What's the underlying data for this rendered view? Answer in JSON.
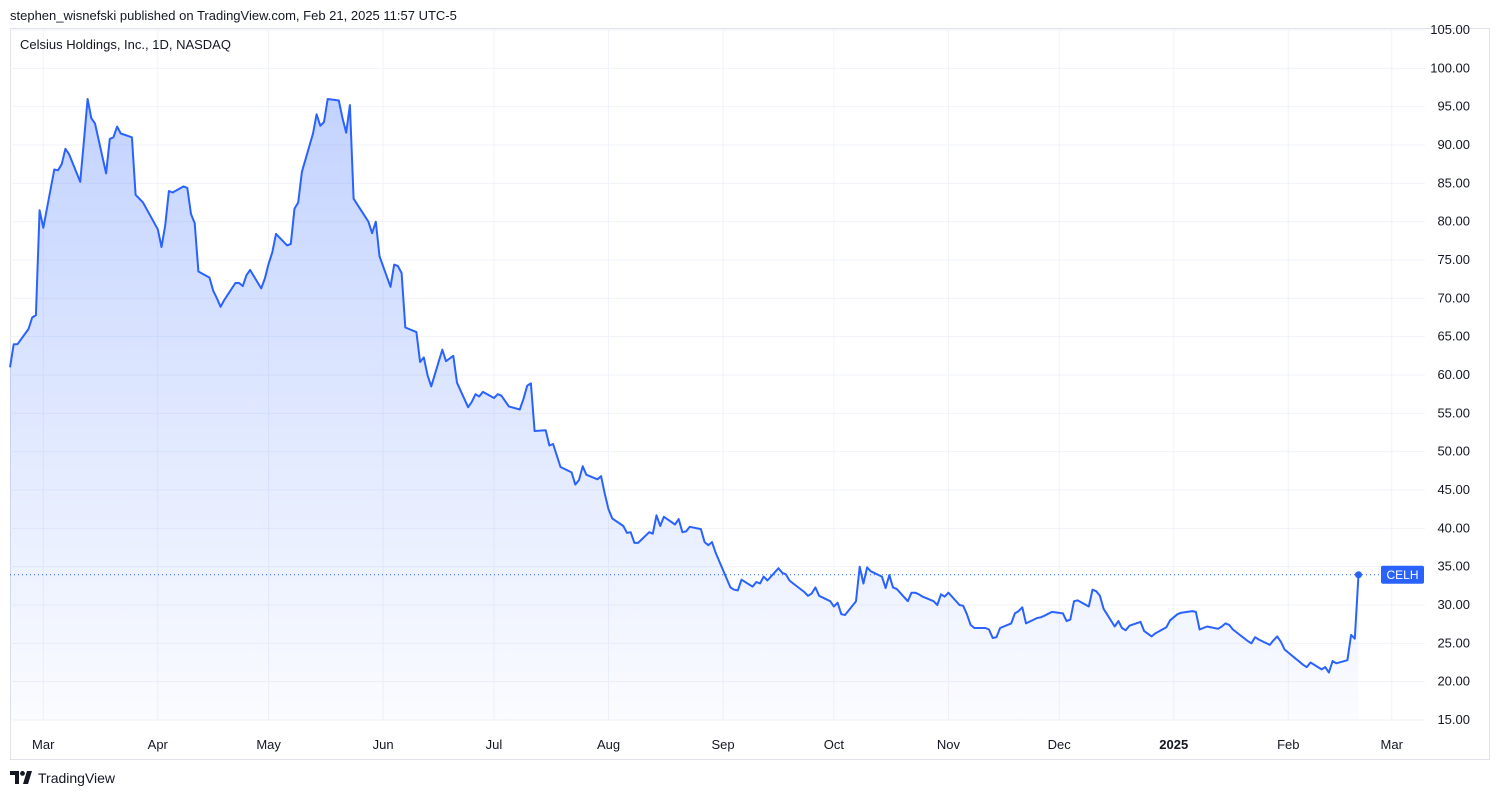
{
  "header": {
    "publisher_line": "stephen_wisnefski published on TradingView.com, Feb 21, 2025 11:57 UTC-5"
  },
  "legend": {
    "title": "Celsius Holdings, Inc., 1D, NASDAQ"
  },
  "footer": {
    "brand": "TradingView",
    "logo_icon": "tradingview-logo-icon"
  },
  "colors": {
    "line": "#2962ff",
    "fill_top": "#2962ff",
    "grid": "#f0f3fa",
    "axis_text": "#131722",
    "price_tag_bg": "#2962ff",
    "price_tag_text": "#ffffff"
  },
  "chart_data": {
    "type": "area",
    "symbol": "CELH",
    "current_price": 33.95,
    "y_axis": {
      "min": 15,
      "max": 105,
      "ticks": [
        "15.00",
        "20.00",
        "25.00",
        "30.00",
        "35.00",
        "40.00",
        "45.00",
        "50.00",
        "55.00",
        "60.00",
        "65.00",
        "70.00",
        "75.00",
        "80.00",
        "85.00",
        "90.00",
        "95.00",
        "100.00",
        "105.00"
      ],
      "position": "right"
    },
    "x_axis": {
      "start": "2024-02-21",
      "end": "2025-03-10",
      "ticks": [
        {
          "label": "Mar",
          "date": "2024-03-01",
          "bold": false
        },
        {
          "label": "Apr",
          "date": "2024-04-01",
          "bold": false
        },
        {
          "label": "May",
          "date": "2024-05-01",
          "bold": false
        },
        {
          "label": "Jun",
          "date": "2024-06-01",
          "bold": false
        },
        {
          "label": "Jul",
          "date": "2024-07-01",
          "bold": false
        },
        {
          "label": "Aug",
          "date": "2024-08-01",
          "bold": false
        },
        {
          "label": "Sep",
          "date": "2024-09-01",
          "bold": false
        },
        {
          "label": "Oct",
          "date": "2024-10-01",
          "bold": false
        },
        {
          "label": "Nov",
          "date": "2024-11-01",
          "bold": false
        },
        {
          "label": "Dec",
          "date": "2024-12-01",
          "bold": false
        },
        {
          "label": "2025",
          "date": "2025-01-01",
          "bold": true
        },
        {
          "label": "Feb",
          "date": "2025-02-01",
          "bold": false
        },
        {
          "label": "Mar",
          "date": "2025-03-01",
          "bold": false
        }
      ]
    },
    "grid": true,
    "series": [
      {
        "name": "CELH",
        "points": [
          [
            "2024-02-21",
            61.0
          ],
          [
            "2024-02-22",
            64.0
          ],
          [
            "2024-02-23",
            64.0
          ],
          [
            "2024-02-26",
            66.0
          ],
          [
            "2024-02-27",
            67.5
          ],
          [
            "2024-02-28",
            67.8
          ],
          [
            "2024-02-29",
            81.5
          ],
          [
            "2024-03-01",
            79.2
          ],
          [
            "2024-03-04",
            86.8
          ],
          [
            "2024-03-05",
            86.7
          ],
          [
            "2024-03-06",
            87.5
          ],
          [
            "2024-03-07",
            89.5
          ],
          [
            "2024-03-08",
            88.8
          ],
          [
            "2024-03-11",
            85.2
          ],
          [
            "2024-03-12",
            90.5
          ],
          [
            "2024-03-13",
            96.0
          ],
          [
            "2024-03-14",
            93.5
          ],
          [
            "2024-03-15",
            92.8
          ],
          [
            "2024-03-18",
            86.3
          ],
          [
            "2024-03-19",
            90.8
          ],
          [
            "2024-03-20",
            91.0
          ],
          [
            "2024-03-21",
            92.4
          ],
          [
            "2024-03-22",
            91.5
          ],
          [
            "2024-03-25",
            91.0
          ],
          [
            "2024-03-26",
            83.5
          ],
          [
            "2024-03-27",
            83.0
          ],
          [
            "2024-03-28",
            82.5
          ],
          [
            "2024-04-01",
            79.0
          ],
          [
            "2024-04-02",
            76.7
          ],
          [
            "2024-04-03",
            79.5
          ],
          [
            "2024-04-04",
            84.0
          ],
          [
            "2024-04-05",
            83.8
          ],
          [
            "2024-04-08",
            84.6
          ],
          [
            "2024-04-09",
            84.4
          ],
          [
            "2024-04-10",
            81.0
          ],
          [
            "2024-04-11",
            79.8
          ],
          [
            "2024-04-12",
            73.5
          ],
          [
            "2024-04-15",
            72.7
          ],
          [
            "2024-04-16",
            71.0
          ],
          [
            "2024-04-17",
            70.0
          ],
          [
            "2024-04-18",
            68.9
          ],
          [
            "2024-04-19",
            69.8
          ],
          [
            "2024-04-22",
            72.0
          ],
          [
            "2024-04-23",
            72.0
          ],
          [
            "2024-04-24",
            71.6
          ],
          [
            "2024-04-25",
            73.0
          ],
          [
            "2024-04-26",
            73.7
          ],
          [
            "2024-04-29",
            71.3
          ],
          [
            "2024-04-30",
            72.6
          ],
          [
            "2024-05-01",
            74.5
          ],
          [
            "2024-05-02",
            76.0
          ],
          [
            "2024-05-03",
            78.4
          ],
          [
            "2024-05-06",
            76.9
          ],
          [
            "2024-05-07",
            77.1
          ],
          [
            "2024-05-08",
            81.7
          ],
          [
            "2024-05-09",
            82.5
          ],
          [
            "2024-05-10",
            86.5
          ],
          [
            "2024-05-13",
            91.5
          ],
          [
            "2024-05-14",
            94.0
          ],
          [
            "2024-05-15",
            92.5
          ],
          [
            "2024-05-16",
            93.0
          ],
          [
            "2024-05-17",
            96.0
          ],
          [
            "2024-05-20",
            95.8
          ],
          [
            "2024-05-21",
            93.5
          ],
          [
            "2024-05-22",
            91.6
          ],
          [
            "2024-05-23",
            95.2
          ],
          [
            "2024-05-24",
            83.0
          ],
          [
            "2024-05-28",
            80.0
          ],
          [
            "2024-05-29",
            78.5
          ],
          [
            "2024-05-30",
            80.0
          ],
          [
            "2024-05-31",
            75.5
          ],
          [
            "2024-06-03",
            71.5
          ],
          [
            "2024-06-04",
            74.4
          ],
          [
            "2024-06-05",
            74.2
          ],
          [
            "2024-06-06",
            73.3
          ],
          [
            "2024-06-07",
            66.2
          ],
          [
            "2024-06-10",
            65.6
          ],
          [
            "2024-06-11",
            61.7
          ],
          [
            "2024-06-12",
            62.3
          ],
          [
            "2024-06-13",
            60.0
          ],
          [
            "2024-06-14",
            58.5
          ],
          [
            "2024-06-17",
            63.3
          ],
          [
            "2024-06-18",
            61.8
          ],
          [
            "2024-06-20",
            62.5
          ],
          [
            "2024-06-21",
            59.0
          ],
          [
            "2024-06-24",
            55.8
          ],
          [
            "2024-06-25",
            56.5
          ],
          [
            "2024-06-26",
            57.5
          ],
          [
            "2024-06-27",
            57.2
          ],
          [
            "2024-06-28",
            57.8
          ],
          [
            "2024-07-01",
            57.0
          ],
          [
            "2024-07-02",
            57.5
          ],
          [
            "2024-07-03",
            57.3
          ],
          [
            "2024-07-05",
            55.9
          ],
          [
            "2024-07-08",
            55.5
          ],
          [
            "2024-07-09",
            56.9
          ],
          [
            "2024-07-10",
            58.6
          ],
          [
            "2024-07-11",
            58.9
          ],
          [
            "2024-07-12",
            52.7
          ],
          [
            "2024-07-15",
            52.8
          ],
          [
            "2024-07-16",
            50.8
          ],
          [
            "2024-07-17",
            51.0
          ],
          [
            "2024-07-18",
            49.5
          ],
          [
            "2024-07-19",
            48.0
          ],
          [
            "2024-07-22",
            47.3
          ],
          [
            "2024-07-23",
            45.7
          ],
          [
            "2024-07-24",
            46.3
          ],
          [
            "2024-07-25",
            48.1
          ],
          [
            "2024-07-26",
            47.0
          ],
          [
            "2024-07-29",
            46.4
          ],
          [
            "2024-07-30",
            46.8
          ],
          [
            "2024-07-31",
            44.5
          ],
          [
            "2024-08-01",
            42.5
          ],
          [
            "2024-08-02",
            41.3
          ],
          [
            "2024-08-05",
            40.3
          ],
          [
            "2024-08-06",
            39.4
          ],
          [
            "2024-08-07",
            39.5
          ],
          [
            "2024-08-08",
            38.1
          ],
          [
            "2024-08-09",
            38.1
          ],
          [
            "2024-08-12",
            39.5
          ],
          [
            "2024-08-13",
            39.3
          ],
          [
            "2024-08-14",
            41.7
          ],
          [
            "2024-08-15",
            40.3
          ],
          [
            "2024-08-16",
            41.5
          ],
          [
            "2024-08-19",
            40.5
          ],
          [
            "2024-08-20",
            41.2
          ],
          [
            "2024-08-21",
            39.5
          ],
          [
            "2024-08-22",
            39.6
          ],
          [
            "2024-08-23",
            40.2
          ],
          [
            "2024-08-26",
            39.9
          ],
          [
            "2024-08-27",
            38.2
          ],
          [
            "2024-08-28",
            37.8
          ],
          [
            "2024-08-29",
            38.2
          ],
          [
            "2024-08-30",
            36.8
          ],
          [
            "2024-09-03",
            32.3
          ],
          [
            "2024-09-04",
            32.0
          ],
          [
            "2024-09-05",
            31.9
          ],
          [
            "2024-09-06",
            33.3
          ],
          [
            "2024-09-09",
            32.4
          ],
          [
            "2024-09-10",
            33.0
          ],
          [
            "2024-09-11",
            32.8
          ],
          [
            "2024-09-12",
            33.7
          ],
          [
            "2024-09-13",
            33.2
          ],
          [
            "2024-09-16",
            34.8
          ],
          [
            "2024-09-17",
            34.2
          ],
          [
            "2024-09-18",
            34.0
          ],
          [
            "2024-09-19",
            33.2
          ],
          [
            "2024-09-20",
            32.8
          ],
          [
            "2024-09-23",
            31.7
          ],
          [
            "2024-09-24",
            31.2
          ],
          [
            "2024-09-25",
            31.5
          ],
          [
            "2024-09-26",
            32.3
          ],
          [
            "2024-09-27",
            31.2
          ],
          [
            "2024-09-30",
            30.5
          ],
          [
            "2024-10-01",
            29.8
          ],
          [
            "2024-10-02",
            30.3
          ],
          [
            "2024-10-03",
            28.8
          ],
          [
            "2024-10-04",
            28.7
          ],
          [
            "2024-10-07",
            30.5
          ],
          [
            "2024-10-08",
            35.0
          ],
          [
            "2024-10-09",
            32.8
          ],
          [
            "2024-10-10",
            34.9
          ],
          [
            "2024-10-11",
            34.4
          ],
          [
            "2024-10-14",
            33.7
          ],
          [
            "2024-10-15",
            32.2
          ],
          [
            "2024-10-16",
            33.9
          ],
          [
            "2024-10-17",
            32.3
          ],
          [
            "2024-10-18",
            32.1
          ],
          [
            "2024-10-21",
            30.5
          ],
          [
            "2024-10-22",
            31.6
          ],
          [
            "2024-10-23",
            31.6
          ],
          [
            "2024-10-24",
            31.4
          ],
          [
            "2024-10-25",
            31.1
          ],
          [
            "2024-10-28",
            30.5
          ],
          [
            "2024-10-29",
            30.0
          ],
          [
            "2024-10-30",
            31.4
          ],
          [
            "2024-10-31",
            31.1
          ],
          [
            "2024-11-01",
            31.6
          ],
          [
            "2024-11-04",
            30.0
          ],
          [
            "2024-11-05",
            29.9
          ],
          [
            "2024-11-06",
            28.8
          ],
          [
            "2024-11-07",
            27.4
          ],
          [
            "2024-11-08",
            27.0
          ],
          [
            "2024-11-11",
            27.0
          ],
          [
            "2024-11-12",
            26.8
          ],
          [
            "2024-11-13",
            25.7
          ],
          [
            "2024-11-14",
            25.8
          ],
          [
            "2024-11-15",
            27.0
          ],
          [
            "2024-11-18",
            27.6
          ],
          [
            "2024-11-19",
            28.9
          ],
          [
            "2024-11-20",
            29.2
          ],
          [
            "2024-11-21",
            29.7
          ],
          [
            "2024-11-22",
            27.6
          ],
          [
            "2024-11-25",
            28.3
          ],
          [
            "2024-11-26",
            28.4
          ],
          [
            "2024-11-27",
            28.6
          ],
          [
            "2024-11-29",
            29.1
          ],
          [
            "2024-12-02",
            28.9
          ],
          [
            "2024-12-03",
            27.9
          ],
          [
            "2024-12-04",
            28.1
          ],
          [
            "2024-12-05",
            30.5
          ],
          [
            "2024-12-06",
            30.6
          ],
          [
            "2024-12-09",
            29.8
          ],
          [
            "2024-12-10",
            32.0
          ],
          [
            "2024-12-11",
            31.8
          ],
          [
            "2024-12-12",
            31.2
          ],
          [
            "2024-12-13",
            29.5
          ],
          [
            "2024-12-16",
            27.2
          ],
          [
            "2024-12-17",
            27.9
          ],
          [
            "2024-12-18",
            27.0
          ],
          [
            "2024-12-19",
            26.7
          ],
          [
            "2024-12-20",
            27.3
          ],
          [
            "2024-12-23",
            27.8
          ],
          [
            "2024-12-24",
            26.6
          ],
          [
            "2024-12-26",
            25.9
          ],
          [
            "2024-12-27",
            26.3
          ],
          [
            "2024-12-30",
            27.1
          ],
          [
            "2024-12-31",
            28.0
          ],
          [
            "2025-01-02",
            28.8
          ],
          [
            "2025-01-03",
            29.0
          ],
          [
            "2025-01-06",
            29.2
          ],
          [
            "2025-01-07",
            29.1
          ],
          [
            "2025-01-08",
            26.8
          ],
          [
            "2025-01-10",
            27.2
          ],
          [
            "2025-01-13",
            26.9
          ],
          [
            "2025-01-14",
            27.2
          ],
          [
            "2025-01-15",
            27.6
          ],
          [
            "2025-01-16",
            27.4
          ],
          [
            "2025-01-17",
            26.8
          ],
          [
            "2025-01-21",
            25.3
          ],
          [
            "2025-01-22",
            25.0
          ],
          [
            "2025-01-23",
            25.8
          ],
          [
            "2025-01-24",
            25.5
          ],
          [
            "2025-01-27",
            24.8
          ],
          [
            "2025-01-28",
            25.4
          ],
          [
            "2025-01-29",
            25.9
          ],
          [
            "2025-01-30",
            25.2
          ],
          [
            "2025-01-31",
            24.2
          ],
          [
            "2025-02-03",
            23.0
          ],
          [
            "2025-02-04",
            22.6
          ],
          [
            "2025-02-05",
            22.2
          ],
          [
            "2025-02-06",
            21.9
          ],
          [
            "2025-02-07",
            22.5
          ],
          [
            "2025-02-10",
            21.6
          ],
          [
            "2025-02-11",
            21.9
          ],
          [
            "2025-02-12",
            21.2
          ],
          [
            "2025-02-13",
            22.7
          ],
          [
            "2025-02-14",
            22.4
          ],
          [
            "2025-02-17",
            22.8
          ],
          [
            "2025-02-18",
            26.1
          ],
          [
            "2025-02-19",
            25.6
          ],
          [
            "2025-02-20",
            33.95
          ]
        ]
      }
    ]
  }
}
